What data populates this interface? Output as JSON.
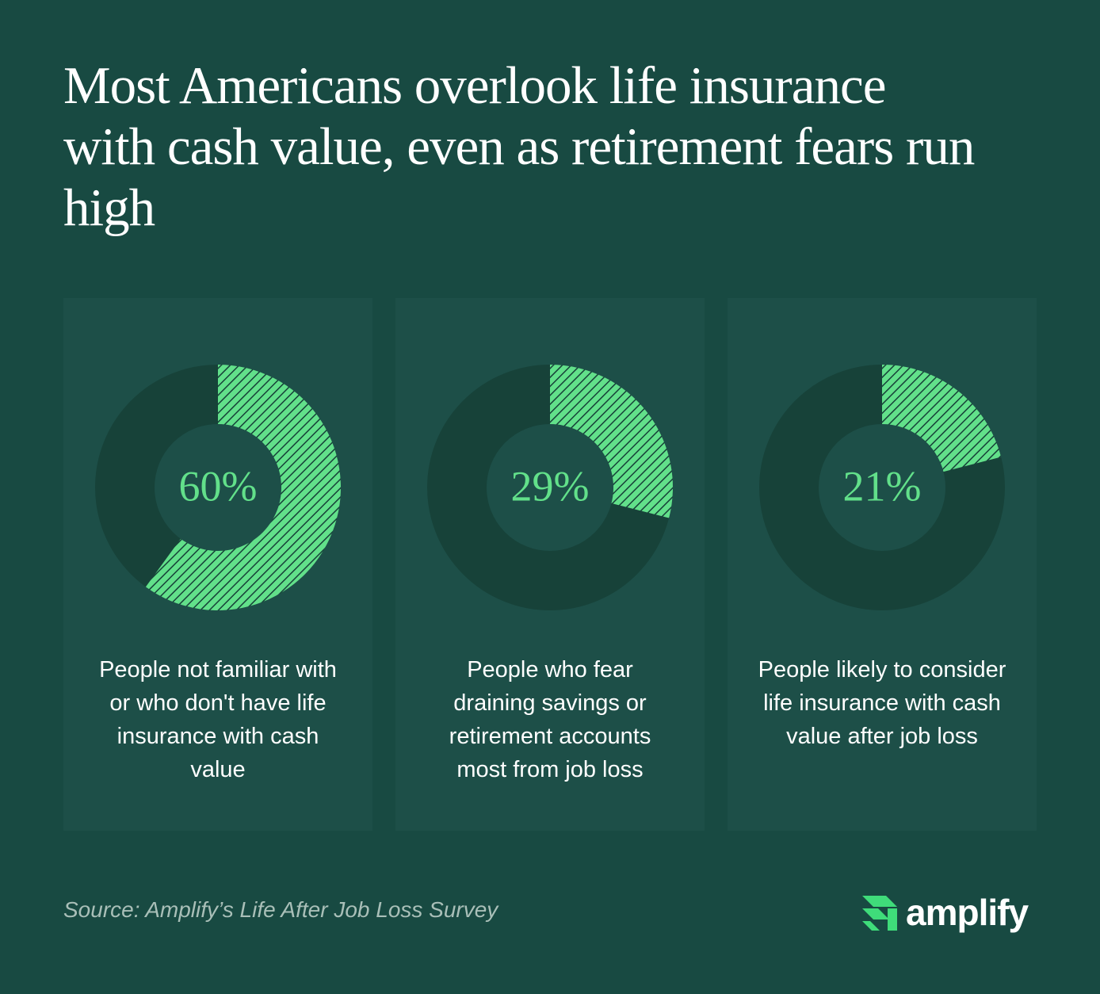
{
  "title": "Most Americans overlook life insurance with cash value, even as retirement fears run high",
  "chart_data": [
    {
      "type": "donut",
      "values": [
        60
      ],
      "value_labels": [
        "60%"
      ],
      "color": "#62e08a",
      "caption": "People not familiar with or who don't have life insurance with cash value"
    },
    {
      "type": "donut",
      "values": [
        29
      ],
      "value_labels": [
        "29%"
      ],
      "color": "#62e08a",
      "caption": "People who fear draining savings or retirement accounts most from job loss"
    },
    {
      "type": "donut",
      "values": [
        21
      ],
      "value_labels": [
        "21%"
      ],
      "color": "#62e08a",
      "caption": "People likely to consider life insurance with cash value after job loss"
    }
  ],
  "source": "Source: Amplify’s Life After Job Loss Survey",
  "brand": "amplify"
}
